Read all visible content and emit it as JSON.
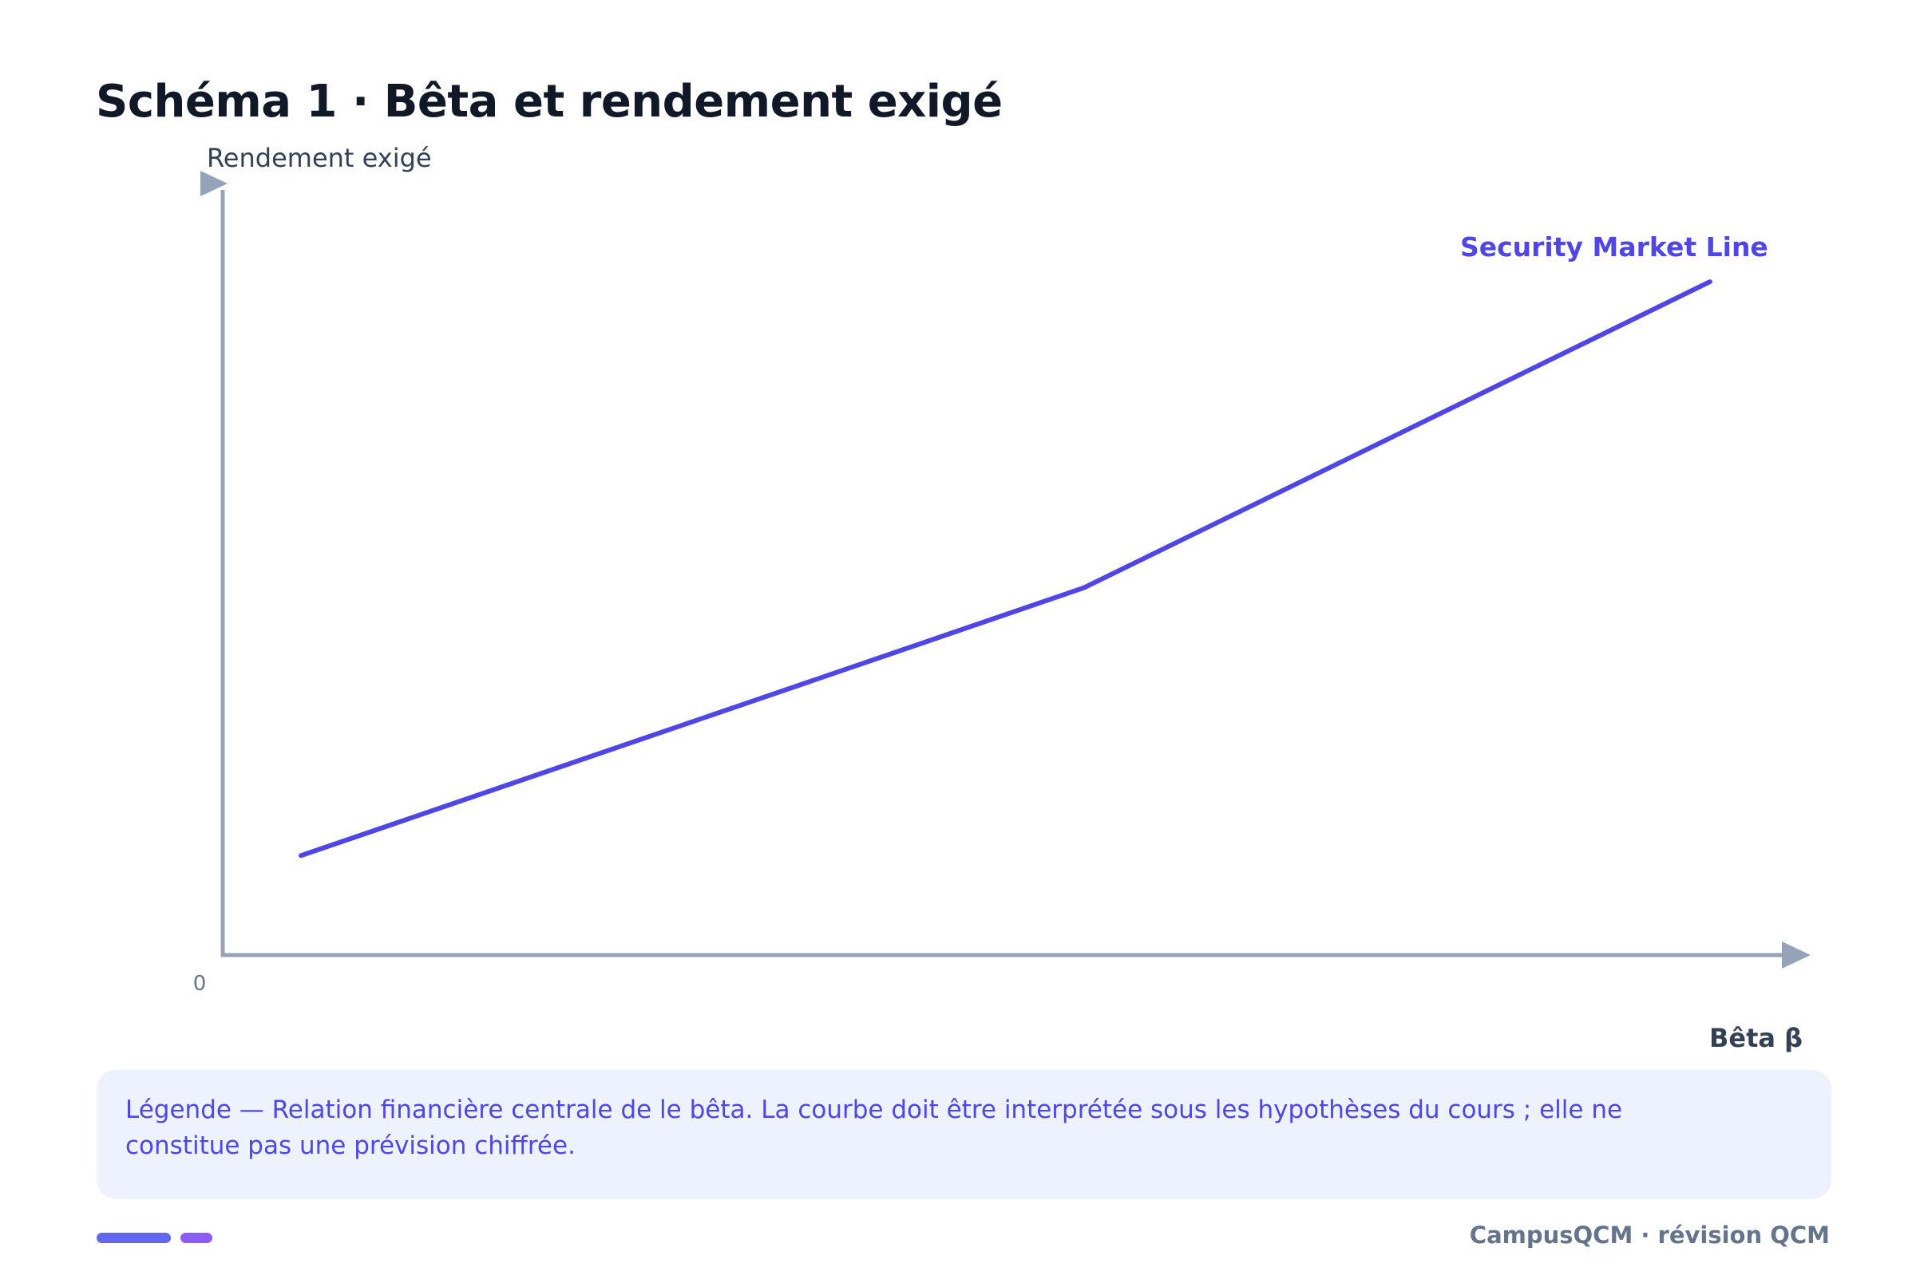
{
  "title": "Schéma 1 · Bêta et rendement exigé",
  "caption": "Légende — Relation financière centrale de le bêta. La courbe doit être interprétée sous les hypothèses du cours ; elle ne constitue pas une prévision chiffrée.",
  "footer": {
    "brand": "CampusQCM · révision QCM"
  },
  "colors": {
    "series": "#4f46e5",
    "axis": "#94a3b8",
    "title": "#111827",
    "caption_bg": "#eef2ff",
    "footer_bar_1": "#6366f1",
    "footer_bar_2": "#8b5cf6"
  },
  "chart_data": {
    "type": "line",
    "title": "Schéma 1 · Bêta et rendement exigé",
    "xlabel": "Bêta β",
    "ylabel": "Rendement exigé",
    "origin_label": "0",
    "x_ticks": [],
    "y_ticks": [],
    "grid": false,
    "legend": "none",
    "xlim": [
      0,
      2
    ],
    "ylim": [
      0,
      1
    ],
    "series": [
      {
        "name": "Security Market Line",
        "x": [
          0.1,
          1.1,
          1.9
        ],
        "y": [
          0.13,
          0.48,
          0.88
        ]
      }
    ]
  }
}
